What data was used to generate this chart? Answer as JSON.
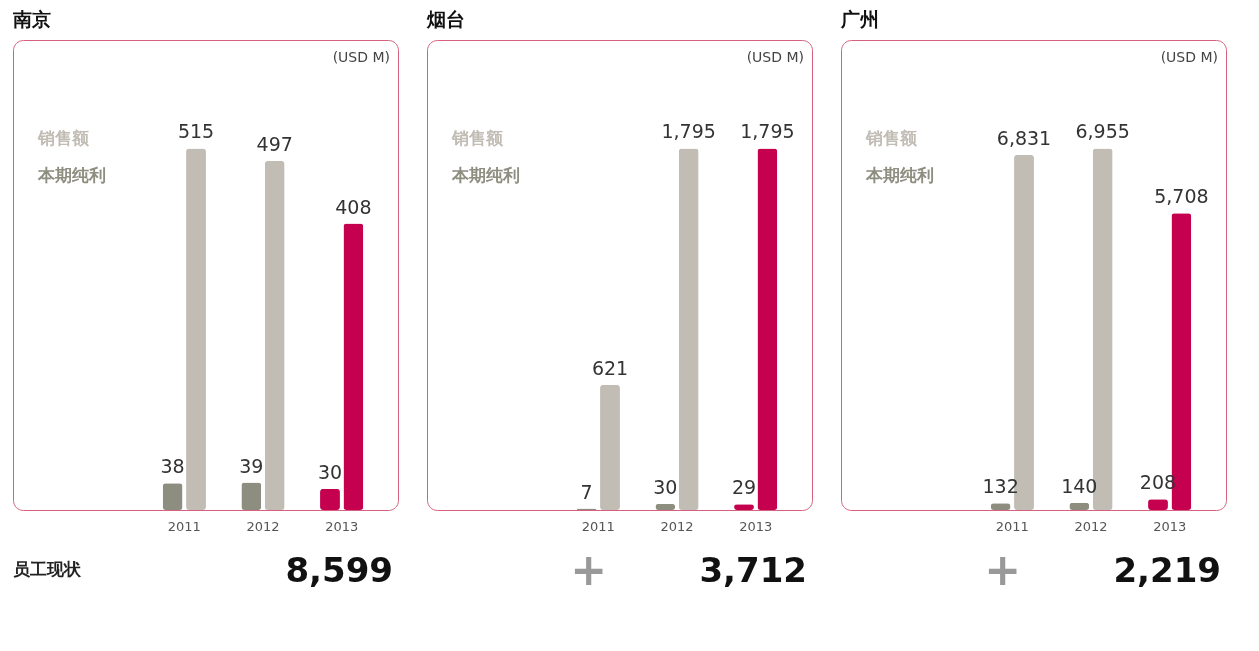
{
  "chart_data": [
    {
      "type": "bar",
      "title": "南京",
      "categories": [
        "2011",
        "2012",
        "2013"
      ],
      "series": [
        {
          "name": "本期纯利",
          "colors": [
            "#8e8e80",
            "#8e8e80",
            "#c4004f"
          ],
          "values": [
            38,
            39,
            30
          ],
          "value_labels": [
            "38",
            "39",
            "30"
          ]
        },
        {
          "name": "销售额",
          "colors": [
            "#c1bcb4",
            "#c1bcb4",
            "#c4004f"
          ],
          "values": [
            515,
            497,
            408
          ],
          "value_labels": [
            "515",
            "497",
            "408"
          ]
        }
      ],
      "annotations": [
        "(USD M)",
        "员工现状",
        "8,599"
      ]
    },
    {
      "type": "bar",
      "title": "烟台",
      "categories": [
        "2011",
        "2012",
        "2013"
      ],
      "series": [
        {
          "name": "本期纯利",
          "colors": [
            "#8e8e80",
            "#8e8e80",
            "#c4004f"
          ],
          "values": [
            7,
            30,
            29
          ],
          "value_labels": [
            "7",
            "30",
            "29"
          ]
        },
        {
          "name": "销售额",
          "colors": [
            "#c1bcb4",
            "#c1bcb4",
            "#c4004f"
          ],
          "values": [
            621,
            1795,
            1795
          ],
          "value_labels": [
            "621",
            "1,795",
            "1,795"
          ]
        }
      ],
      "annotations": [
        "(USD M)",
        "+",
        "3,712"
      ]
    },
    {
      "type": "bar",
      "title": "广州",
      "categories": [
        "2011",
        "2012",
        "2013"
      ],
      "series": [
        {
          "name": "本期纯利",
          "colors": [
            "#8e8e80",
            "#8e8e80",
            "#c4004f"
          ],
          "values": [
            132,
            140,
            208
          ],
          "value_labels": [
            "132",
            "140",
            "208"
          ]
        },
        {
          "name": "销售额",
          "colors": [
            "#c1bcb4",
            "#c1bcb4",
            "#c4004f"
          ],
          "values": [
            6831,
            6955,
            5708
          ],
          "value_labels": [
            "6,831",
            "6,955",
            "5,708"
          ]
        }
      ],
      "annotations": [
        "(USD M)",
        "+",
        "2,219"
      ]
    }
  ]
}
